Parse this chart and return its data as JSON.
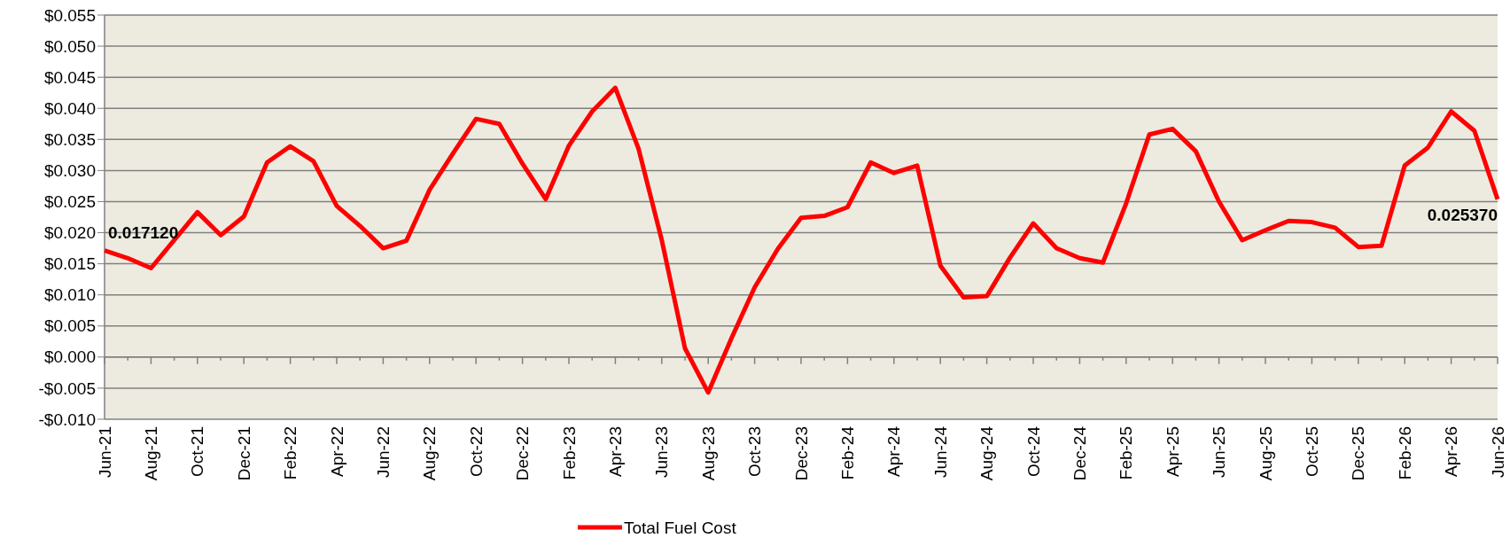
{
  "chart_data": {
    "type": "line",
    "categories": [
      "Jun-21",
      null,
      "Aug-21",
      null,
      "Oct-21",
      null,
      "Dec-21",
      null,
      "Feb-22",
      null,
      "Apr-22",
      null,
      "Jun-22",
      null,
      "Aug-22",
      null,
      "Oct-22",
      null,
      "Dec-22",
      null,
      "Feb-23",
      null,
      "Apr-23",
      null,
      "Jun-23",
      null,
      "Aug-23",
      null,
      "Oct-23",
      null,
      "Dec-23",
      null,
      "Feb-24",
      null,
      "Apr-24",
      null,
      "Jun-24",
      null,
      "Aug-24",
      null,
      "Oct-24",
      null,
      "Dec-24",
      null,
      "Feb-25",
      null,
      "Apr-25",
      null,
      "Jun-25",
      null,
      "Aug-25",
      null,
      "Oct-25",
      null,
      "Dec-25",
      null,
      "Feb-26",
      null,
      "Apr-26",
      null,
      "Jun-26"
    ],
    "series": [
      {
        "name": "Total Fuel Cost",
        "color": "#ff0000",
        "values": [
          0.01712,
          0.0159,
          0.0143,
          0.0188,
          0.0233,
          0.0196,
          0.0226,
          0.0313,
          0.0339,
          0.0315,
          0.0243,
          0.0211,
          0.0175,
          0.0187,
          0.0269,
          0.0327,
          0.0383,
          0.0375,
          0.0311,
          0.0254,
          0.034,
          0.0395,
          0.0433,
          0.0335,
          0.0188,
          0.0014,
          -0.0057,
          0.003,
          0.0112,
          0.0174,
          0.0224,
          0.0227,
          0.0241,
          0.0313,
          0.0296,
          0.0308,
          0.0147,
          0.0096,
          0.0098,
          0.016,
          0.0215,
          0.0175,
          0.0159,
          0.0152,
          0.0247,
          0.0358,
          0.0367,
          0.0331,
          0.025,
          0.0188,
          0.0204,
          0.0219,
          0.0217,
          0.0208,
          0.0177,
          0.0179,
          0.0308,
          0.0337,
          0.0395,
          0.0364,
          0.02537
        ],
        "value_labels": [
          "0.017120",
          null,
          null,
          null,
          null,
          null,
          null,
          null,
          null,
          null,
          null,
          null,
          null,
          null,
          null,
          null,
          null,
          null,
          null,
          null,
          null,
          null,
          null,
          null,
          null,
          null,
          null,
          null,
          null,
          null,
          null,
          null,
          null,
          null,
          null,
          null,
          null,
          null,
          null,
          null,
          null,
          null,
          null,
          null,
          null,
          null,
          null,
          null,
          null,
          null,
          null,
          null,
          null,
          null,
          null,
          null,
          null,
          null,
          null,
          null,
          "0.025370"
        ]
      }
    ],
    "ylim": [
      -0.01,
      0.055
    ],
    "yticks": [
      {
        "value": -0.01,
        "label": "-$0.010"
      },
      {
        "value": -0.005,
        "label": "-$0.005"
      },
      {
        "value": 0,
        "label": "$0.000"
      },
      {
        "value": 0.005,
        "label": "$0.005"
      },
      {
        "value": 0.01,
        "label": "$0.010"
      },
      {
        "value": 0.015,
        "label": "$0.015"
      },
      {
        "value": 0.02,
        "label": "$0.020"
      },
      {
        "value": 0.025,
        "label": "$0.025"
      },
      {
        "value": 0.03,
        "label": "$0.030"
      },
      {
        "value": 0.035,
        "label": "$0.035"
      },
      {
        "value": 0.04,
        "label": "$0.040"
      },
      {
        "value": 0.045,
        "label": "$0.045"
      },
      {
        "value": 0.05,
        "label": "$0.050"
      },
      {
        "value": 0.055,
        "label": "$0.055"
      }
    ],
    "grid": "y",
    "legend": "bottom",
    "marker": "none",
    "line_style": "solid"
  }
}
